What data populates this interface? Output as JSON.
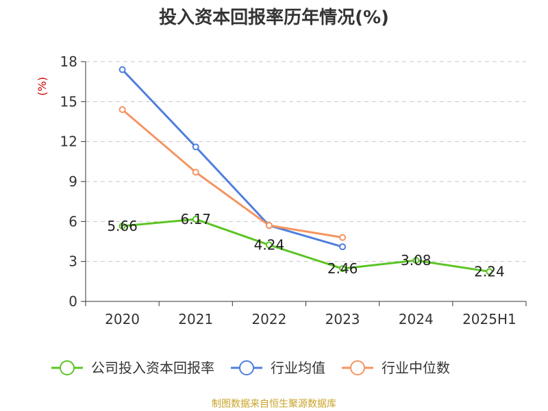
{
  "colors": {
    "company": "#5cc425",
    "industry_avg": "#4f7fdc",
    "industry_median": "#f59460",
    "grid": "#c8c8c8",
    "axis": "#333333",
    "unit": "#cc0000",
    "source": "#c9a227"
  },
  "footer": {
    "source": "制图数据来自恒生聚源数据库"
  },
  "chart_data": {
    "type": "line",
    "title": "投入资本回报率历年情况(%)",
    "ylabel": "(%)",
    "categories": [
      "2020",
      "2021",
      "2022",
      "2023",
      "2024",
      "2025H1"
    ],
    "ylim": [
      0,
      18
    ],
    "yticks": [
      0,
      3,
      6,
      9,
      12,
      15,
      18
    ],
    "grid": true,
    "legend_position": "bottom",
    "series": [
      {
        "name": "公司投入资本回报率",
        "color_key": "company",
        "values": [
          5.66,
          6.17,
          4.24,
          2.46,
          3.08,
          2.24
        ],
        "labels": [
          "5.66",
          "6.17",
          "4.24",
          "2.46",
          "3.08",
          "2.24"
        ]
      },
      {
        "name": "行业均值",
        "color_key": "industry_avg",
        "values": [
          17.4,
          11.6,
          5.7,
          4.1,
          null,
          null
        ]
      },
      {
        "name": "行业中位数",
        "color_key": "industry_median",
        "values": [
          14.4,
          9.7,
          5.7,
          4.8,
          null,
          null
        ]
      }
    ]
  }
}
